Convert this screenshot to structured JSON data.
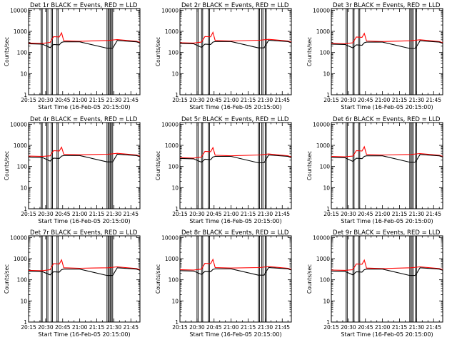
{
  "figure": {
    "background": "#ffffff",
    "colors": {
      "events": "#000000",
      "lld": "#ff0000",
      "axes": "#000000"
    }
  },
  "chart_data": [
    {
      "type": "line",
      "title": "Det 1r  BLACK = Events, RED = LLD",
      "xlabel": "Start Time (16-Feb-05 20:15:00)",
      "ylabel": "Counts/sec",
      "x_ticks": [
        "20:15",
        "20:30",
        "20:45",
        "21:00",
        "21:15",
        "21:30",
        "21:45"
      ],
      "y_ticks": [
        "1",
        "10",
        "100",
        "1000",
        "10000"
      ],
      "yscale": "log",
      "ylim": [
        1,
        12000
      ],
      "xlim": [
        "20:15",
        "21:53"
      ],
      "grid": false,
      "gaps": [
        [
          "20:26",
          "20:27"
        ],
        [
          "20:31",
          "20:32"
        ],
        [
          "20:35",
          "20:36"
        ],
        [
          "20:40",
          "20:41"
        ],
        [
          "21:24",
          "21:25"
        ],
        [
          "21:26",
          "21:27"
        ],
        [
          "21:28",
          "21:29"
        ]
      ],
      "series": [
        {
          "name": "LLD",
          "color": "#ff0000",
          "x": [
            "20:15",
            "20:27",
            "20:34",
            "20:37",
            "20:42",
            "20:44",
            "20:46",
            "21:00",
            "21:25",
            "21:33",
            "21:50",
            "21:53"
          ],
          "y": [
            280,
            270,
            300,
            560,
            540,
            850,
            360,
            340,
            370,
            410,
            340,
            300
          ]
        },
        {
          "name": "Events",
          "color": "#000000",
          "x": [
            "20:15",
            "20:27",
            "20:34",
            "20:37",
            "20:42",
            "20:44",
            "20:46",
            "21:00",
            "21:24",
            "21:29",
            "21:33",
            "21:50",
            "21:53"
          ],
          "y": [
            260,
            250,
            170,
            240,
            230,
            300,
            320,
            320,
            160,
            160,
            370,
            320,
            280
          ]
        }
      ]
    },
    {
      "type": "line",
      "title": "Det 2r  BLACK = Events, RED = LLD",
      "xlabel": "Start Time (16-Feb-05 20:15:00)",
      "ylabel": "Counts/sec",
      "x_ticks": [
        "20:15",
        "20:30",
        "20:45",
        "21:00",
        "21:15",
        "21:30",
        "21:45"
      ],
      "y_ticks": [
        "1",
        "10",
        "100",
        "1000",
        "10000"
      ],
      "yscale": "log",
      "ylim": [
        1,
        12000
      ],
      "xlim": [
        "20:15",
        "21:53"
      ],
      "grid": false,
      "gaps": [
        [
          "20:30",
          "20:31"
        ],
        [
          "20:34",
          "20:35"
        ],
        [
          "20:40",
          "20:41"
        ],
        [
          "21:24",
          "21:25"
        ],
        [
          "21:27",
          "21:28"
        ],
        [
          "21:30",
          "21:31"
        ]
      ],
      "series": [
        {
          "name": "LLD",
          "color": "#ff0000",
          "x": [
            "20:15",
            "20:27",
            "20:34",
            "20:37",
            "20:42",
            "20:44",
            "20:46",
            "21:00",
            "21:25",
            "21:33",
            "21:50",
            "21:53"
          ],
          "y": [
            290,
            280,
            310,
            570,
            550,
            900,
            370,
            350,
            380,
            420,
            350,
            310
          ]
        },
        {
          "name": "Events",
          "color": "#000000",
          "x": [
            "20:15",
            "20:27",
            "20:34",
            "20:37",
            "20:42",
            "20:44",
            "20:46",
            "21:00",
            "21:24",
            "21:29",
            "21:33",
            "21:50",
            "21:53"
          ],
          "y": [
            270,
            260,
            175,
            250,
            240,
            310,
            330,
            330,
            165,
            165,
            380,
            330,
            290
          ]
        }
      ]
    },
    {
      "type": "line",
      "title": "Det 3r  BLACK = Events, RED = LLD",
      "xlabel": "Start Time (16-Feb-05 20:15:00)",
      "ylabel": "Counts/sec",
      "x_ticks": [
        "20:15",
        "20:30",
        "20:45",
        "21:00",
        "21:15",
        "21:30",
        "21:45"
      ],
      "y_ticks": [
        "1",
        "10",
        "100",
        "1000",
        "10000"
      ],
      "yscale": "log",
      "ylim": [
        1,
        12000
      ],
      "xlim": [
        "20:15",
        "21:53"
      ],
      "grid": false,
      "gaps": [
        [
          "20:28",
          "20:29"
        ],
        [
          "20:34",
          "20:35"
        ],
        [
          "20:39",
          "20:40"
        ],
        [
          "21:24",
          "21:25"
        ],
        [
          "21:26",
          "21:27"
        ],
        [
          "21:29",
          "21:30"
        ]
      ],
      "series": [
        {
          "name": "LLD",
          "color": "#ff0000",
          "x": [
            "20:15",
            "20:27",
            "20:34",
            "20:37",
            "20:42",
            "20:44",
            "20:46",
            "21:00",
            "21:25",
            "21:33",
            "21:50",
            "21:53"
          ],
          "y": [
            270,
            260,
            290,
            540,
            520,
            800,
            350,
            330,
            360,
            400,
            330,
            290
          ]
        },
        {
          "name": "Events",
          "color": "#000000",
          "x": [
            "20:15",
            "20:27",
            "20:34",
            "20:37",
            "20:42",
            "20:44",
            "20:46",
            "21:00",
            "21:24",
            "21:29",
            "21:33",
            "21:50",
            "21:53"
          ],
          "y": [
            250,
            240,
            165,
            230,
            220,
            290,
            310,
            310,
            155,
            155,
            360,
            310,
            270
          ]
        }
      ]
    },
    {
      "type": "line",
      "title": "Det 4r  BLACK = Events, RED = LLD",
      "xlabel": "Start Time (16-Feb-05 20:15:00)",
      "ylabel": "Counts/sec",
      "x_ticks": [
        "20:15",
        "20:30",
        "20:45",
        "21:00",
        "21:15",
        "21:30",
        "21:45"
      ],
      "y_ticks": [
        "1",
        "10",
        "100",
        "1000",
        "10000"
      ],
      "yscale": "log",
      "ylim": [
        1,
        12000
      ],
      "xlim": [
        "20:15",
        "21:53"
      ],
      "grid": false,
      "gaps": [
        [
          "20:26",
          "20:27"
        ],
        [
          "20:31",
          "20:32"
        ],
        [
          "20:35",
          "20:36"
        ],
        [
          "20:40",
          "20:41"
        ],
        [
          "21:24",
          "21:25"
        ],
        [
          "21:26",
          "21:27"
        ],
        [
          "21:28",
          "21:29"
        ]
      ],
      "series": [
        {
          "name": "LLD",
          "color": "#ff0000",
          "x": [
            "20:15",
            "20:27",
            "20:34",
            "20:37",
            "20:42",
            "20:44",
            "20:46",
            "21:00",
            "21:25",
            "21:33",
            "21:50",
            "21:53"
          ],
          "y": [
            310,
            300,
            320,
            560,
            540,
            820,
            380,
            360,
            380,
            420,
            350,
            310
          ]
        },
        {
          "name": "Events",
          "color": "#000000",
          "x": [
            "20:15",
            "20:27",
            "20:34",
            "20:37",
            "20:42",
            "20:44",
            "20:46",
            "21:00",
            "21:24",
            "21:29",
            "21:33",
            "21:50",
            "21:53"
          ],
          "y": [
            280,
            270,
            180,
            250,
            240,
            310,
            330,
            330,
            165,
            165,
            380,
            330,
            290
          ]
        }
      ]
    },
    {
      "type": "line",
      "title": "Det 5r  BLACK = Events, RED = LLD",
      "xlabel": "Start Time (16-Feb-05 20:15:00)",
      "ylabel": "Counts/sec",
      "x_ticks": [
        "20:15",
        "20:30",
        "20:45",
        "21:00",
        "21:15",
        "21:30",
        "21:45"
      ],
      "y_ticks": [
        "1",
        "10",
        "100",
        "1000",
        "10000"
      ],
      "yscale": "log",
      "ylim": [
        1,
        12000
      ],
      "xlim": [
        "20:15",
        "21:53"
      ],
      "grid": false,
      "gaps": [
        [
          "20:30",
          "20:31"
        ],
        [
          "20:34",
          "20:35"
        ],
        [
          "20:40",
          "20:41"
        ],
        [
          "21:24",
          "21:25"
        ],
        [
          "21:27",
          "21:28"
        ],
        [
          "21:30",
          "21:31"
        ]
      ],
      "series": [
        {
          "name": "LLD",
          "color": "#ff0000",
          "x": [
            "20:15",
            "20:27",
            "20:34",
            "20:37",
            "20:42",
            "20:44",
            "20:46",
            "21:00",
            "21:25",
            "21:33",
            "21:50",
            "21:53"
          ],
          "y": [
            260,
            250,
            280,
            520,
            500,
            780,
            340,
            320,
            350,
            390,
            320,
            280
          ]
        },
        {
          "name": "Events",
          "color": "#000000",
          "x": [
            "20:15",
            "20:27",
            "20:34",
            "20:37",
            "20:42",
            "20:44",
            "20:46",
            "21:00",
            "21:24",
            "21:29",
            "21:33",
            "21:50",
            "21:53"
          ],
          "y": [
            240,
            230,
            160,
            220,
            210,
            280,
            300,
            300,
            150,
            150,
            350,
            300,
            260
          ]
        }
      ]
    },
    {
      "type": "line",
      "title": "Det 6r  BLACK = Events, RED = LLD",
      "xlabel": "Start Time (16-Feb-05 20:15:00)",
      "ylabel": "Counts/sec",
      "x_ticks": [
        "20:15",
        "20:30",
        "20:45",
        "21:00",
        "21:15",
        "21:30",
        "21:45"
      ],
      "y_ticks": [
        "1",
        "10",
        "100",
        "1000",
        "10000"
      ],
      "yscale": "log",
      "ylim": [
        1,
        12000
      ],
      "xlim": [
        "20:15",
        "21:53"
      ],
      "grid": false,
      "gaps": [
        [
          "20:28",
          "20:29"
        ],
        [
          "20:34",
          "20:35"
        ],
        [
          "20:39",
          "20:40"
        ],
        [
          "21:24",
          "21:25"
        ],
        [
          "21:26",
          "21:27"
        ],
        [
          "21:29",
          "21:30"
        ]
      ],
      "series": [
        {
          "name": "LLD",
          "color": "#ff0000",
          "x": [
            "20:15",
            "20:27",
            "20:34",
            "20:37",
            "20:42",
            "20:44",
            "20:46",
            "21:00",
            "21:25",
            "21:33",
            "21:50",
            "21:53"
          ],
          "y": [
            300,
            290,
            310,
            560,
            540,
            860,
            370,
            350,
            370,
            410,
            340,
            300
          ]
        },
        {
          "name": "Events",
          "color": "#000000",
          "x": [
            "20:15",
            "20:27",
            "20:34",
            "20:37",
            "20:42",
            "20:44",
            "20:46",
            "21:00",
            "21:24",
            "21:29",
            "21:33",
            "21:50",
            "21:53"
          ],
          "y": [
            270,
            260,
            175,
            245,
            235,
            300,
            320,
            320,
            160,
            160,
            370,
            320,
            280
          ]
        }
      ]
    },
    {
      "type": "line",
      "title": "Det 7r  BLACK = Events, RED = LLD",
      "xlabel": "Start Time (16-Feb-05 20:15:00)",
      "ylabel": "Counts/sec",
      "x_ticks": [
        "20:15",
        "20:30",
        "20:45",
        "21:00",
        "21:15",
        "21:30",
        "21:45"
      ],
      "y_ticks": [
        "1",
        "10",
        "100",
        "1000",
        "10000"
      ],
      "yscale": "log",
      "ylim": [
        1,
        12000
      ],
      "xlim": [
        "20:15",
        "21:53"
      ],
      "grid": false,
      "gaps": [
        [
          "20:26",
          "20:27"
        ],
        [
          "20:31",
          "20:32"
        ],
        [
          "20:35",
          "20:36"
        ],
        [
          "20:40",
          "20:41"
        ],
        [
          "21:24",
          "21:25"
        ],
        [
          "21:26",
          "21:27"
        ],
        [
          "21:28",
          "21:29"
        ]
      ],
      "series": [
        {
          "name": "LLD",
          "color": "#ff0000",
          "x": [
            "20:15",
            "20:27",
            "20:34",
            "20:37",
            "20:42",
            "20:44",
            "20:46",
            "21:00",
            "21:25",
            "21:33",
            "21:50",
            "21:53"
          ],
          "y": [
            280,
            270,
            300,
            580,
            560,
            880,
            370,
            350,
            370,
            410,
            340,
            300
          ]
        },
        {
          "name": "Events",
          "color": "#000000",
          "x": [
            "20:15",
            "20:27",
            "20:34",
            "20:37",
            "20:42",
            "20:44",
            "20:46",
            "21:00",
            "21:24",
            "21:29",
            "21:33",
            "21:50",
            "21:53"
          ],
          "y": [
            255,
            245,
            170,
            240,
            230,
            300,
            320,
            320,
            160,
            160,
            370,
            320,
            280
          ]
        }
      ]
    },
    {
      "type": "line",
      "title": "Det 8r  BLACK = Events, RED = LLD",
      "xlabel": "Start Time (16-Feb-05 20:15:00)",
      "ylabel": "Counts/sec",
      "x_ticks": [
        "20:15",
        "20:30",
        "20:45",
        "21:00",
        "21:15",
        "21:30",
        "21:45"
      ],
      "y_ticks": [
        "1",
        "10",
        "100",
        "1000",
        "10000"
      ],
      "yscale": "log",
      "ylim": [
        1,
        12000
      ],
      "xlim": [
        "20:15",
        "21:53"
      ],
      "grid": false,
      "gaps": [
        [
          "20:30",
          "20:31"
        ],
        [
          "20:34",
          "20:35"
        ],
        [
          "20:40",
          "20:41"
        ],
        [
          "21:24",
          "21:25"
        ],
        [
          "21:27",
          "21:28"
        ],
        [
          "21:30",
          "21:31"
        ]
      ],
      "series": [
        {
          "name": "LLD",
          "color": "#ff0000",
          "x": [
            "20:15",
            "20:27",
            "20:34",
            "20:37",
            "20:42",
            "20:44",
            "20:46",
            "21:00",
            "21:25",
            "21:33",
            "21:50",
            "21:53"
          ],
          "y": [
            300,
            290,
            320,
            600,
            580,
            920,
            380,
            360,
            380,
            420,
            350,
            310
          ]
        },
        {
          "name": "Events",
          "color": "#000000",
          "x": [
            "20:15",
            "20:27",
            "20:34",
            "20:37",
            "20:42",
            "20:44",
            "20:46",
            "21:00",
            "21:24",
            "21:29",
            "21:33",
            "21:50",
            "21:53"
          ],
          "y": [
            270,
            260,
            180,
            250,
            240,
            310,
            330,
            330,
            165,
            165,
            380,
            330,
            290
          ]
        }
      ]
    },
    {
      "type": "line",
      "title": "Det 9r  BLACK = Events, RED = LLD",
      "xlabel": "Start Time (16-Feb-05 20:15:00)",
      "ylabel": "Counts/sec",
      "x_ticks": [
        "20:15",
        "20:30",
        "20:45",
        "21:00",
        "21:15",
        "21:30",
        "21:45"
      ],
      "y_ticks": [
        "1",
        "10",
        "100",
        "1000",
        "10000"
      ],
      "yscale": "log",
      "ylim": [
        1,
        12000
      ],
      "xlim": [
        "20:15",
        "21:53"
      ],
      "grid": false,
      "gaps": [
        [
          "20:28",
          "20:29"
        ],
        [
          "20:34",
          "20:35"
        ],
        [
          "20:39",
          "20:40"
        ],
        [
          "21:24",
          "21:25"
        ],
        [
          "21:26",
          "21:27"
        ],
        [
          "21:29",
          "21:30"
        ]
      ],
      "series": [
        {
          "name": "LLD",
          "color": "#ff0000",
          "x": [
            "20:15",
            "20:27",
            "20:34",
            "20:37",
            "20:42",
            "20:44",
            "20:46",
            "21:00",
            "21:25",
            "21:33",
            "21:50",
            "21:53"
          ],
          "y": [
            290,
            280,
            300,
            560,
            540,
            850,
            360,
            340,
            370,
            410,
            340,
            300
          ]
        },
        {
          "name": "Events",
          "color": "#000000",
          "x": [
            "20:15",
            "20:27",
            "20:34",
            "20:37",
            "20:42",
            "20:44",
            "20:46",
            "21:00",
            "21:24",
            "21:29",
            "21:33",
            "21:50",
            "21:53"
          ],
          "y": [
            260,
            250,
            170,
            240,
            230,
            300,
            320,
            320,
            160,
            160,
            370,
            320,
            280
          ]
        }
      ]
    }
  ]
}
